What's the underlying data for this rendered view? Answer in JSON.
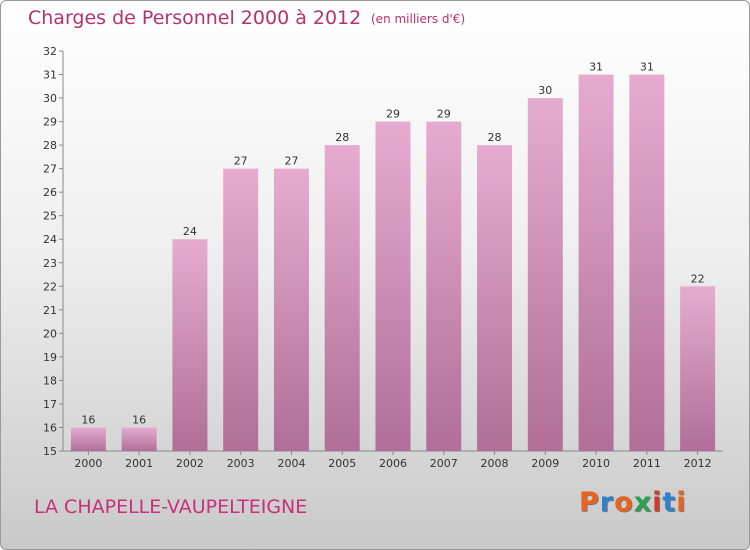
{
  "header": {
    "title": "Charges de Personnel 2000 à 2012",
    "unit": "(en milliers d'€)"
  },
  "footer": {
    "commune": "LA CHAPELLE-VAUPELTEIGNE",
    "logo_text": "Proxiti",
    "logo_colors": [
      "#e8641e",
      "#2f7fd0",
      "#e8641e",
      "#2aa050",
      "#d43a2a",
      "#2f7fd0",
      "#e8641e"
    ]
  },
  "colors": {
    "bar_top": "#e6acd0",
    "bar_bottom": "#b06e98",
    "axis_text": "#333333"
  },
  "chart_data": {
    "type": "bar",
    "title": "Charges de Personnel 2000 à 2012",
    "categories": [
      "2000",
      "2001",
      "2002",
      "2003",
      "2004",
      "2005",
      "2006",
      "2007",
      "2008",
      "2009",
      "2010",
      "2011",
      "2012"
    ],
    "values": [
      16,
      16,
      24,
      27,
      27,
      28,
      29,
      29,
      28,
      30,
      31,
      31,
      22
    ],
    "ylim": [
      15,
      32
    ],
    "yticks": [
      15,
      16,
      17,
      18,
      19,
      20,
      21,
      22,
      23,
      24,
      25,
      26,
      27,
      28,
      29,
      30,
      31,
      32
    ],
    "grid": false,
    "xlabel": "",
    "ylabel": ""
  }
}
